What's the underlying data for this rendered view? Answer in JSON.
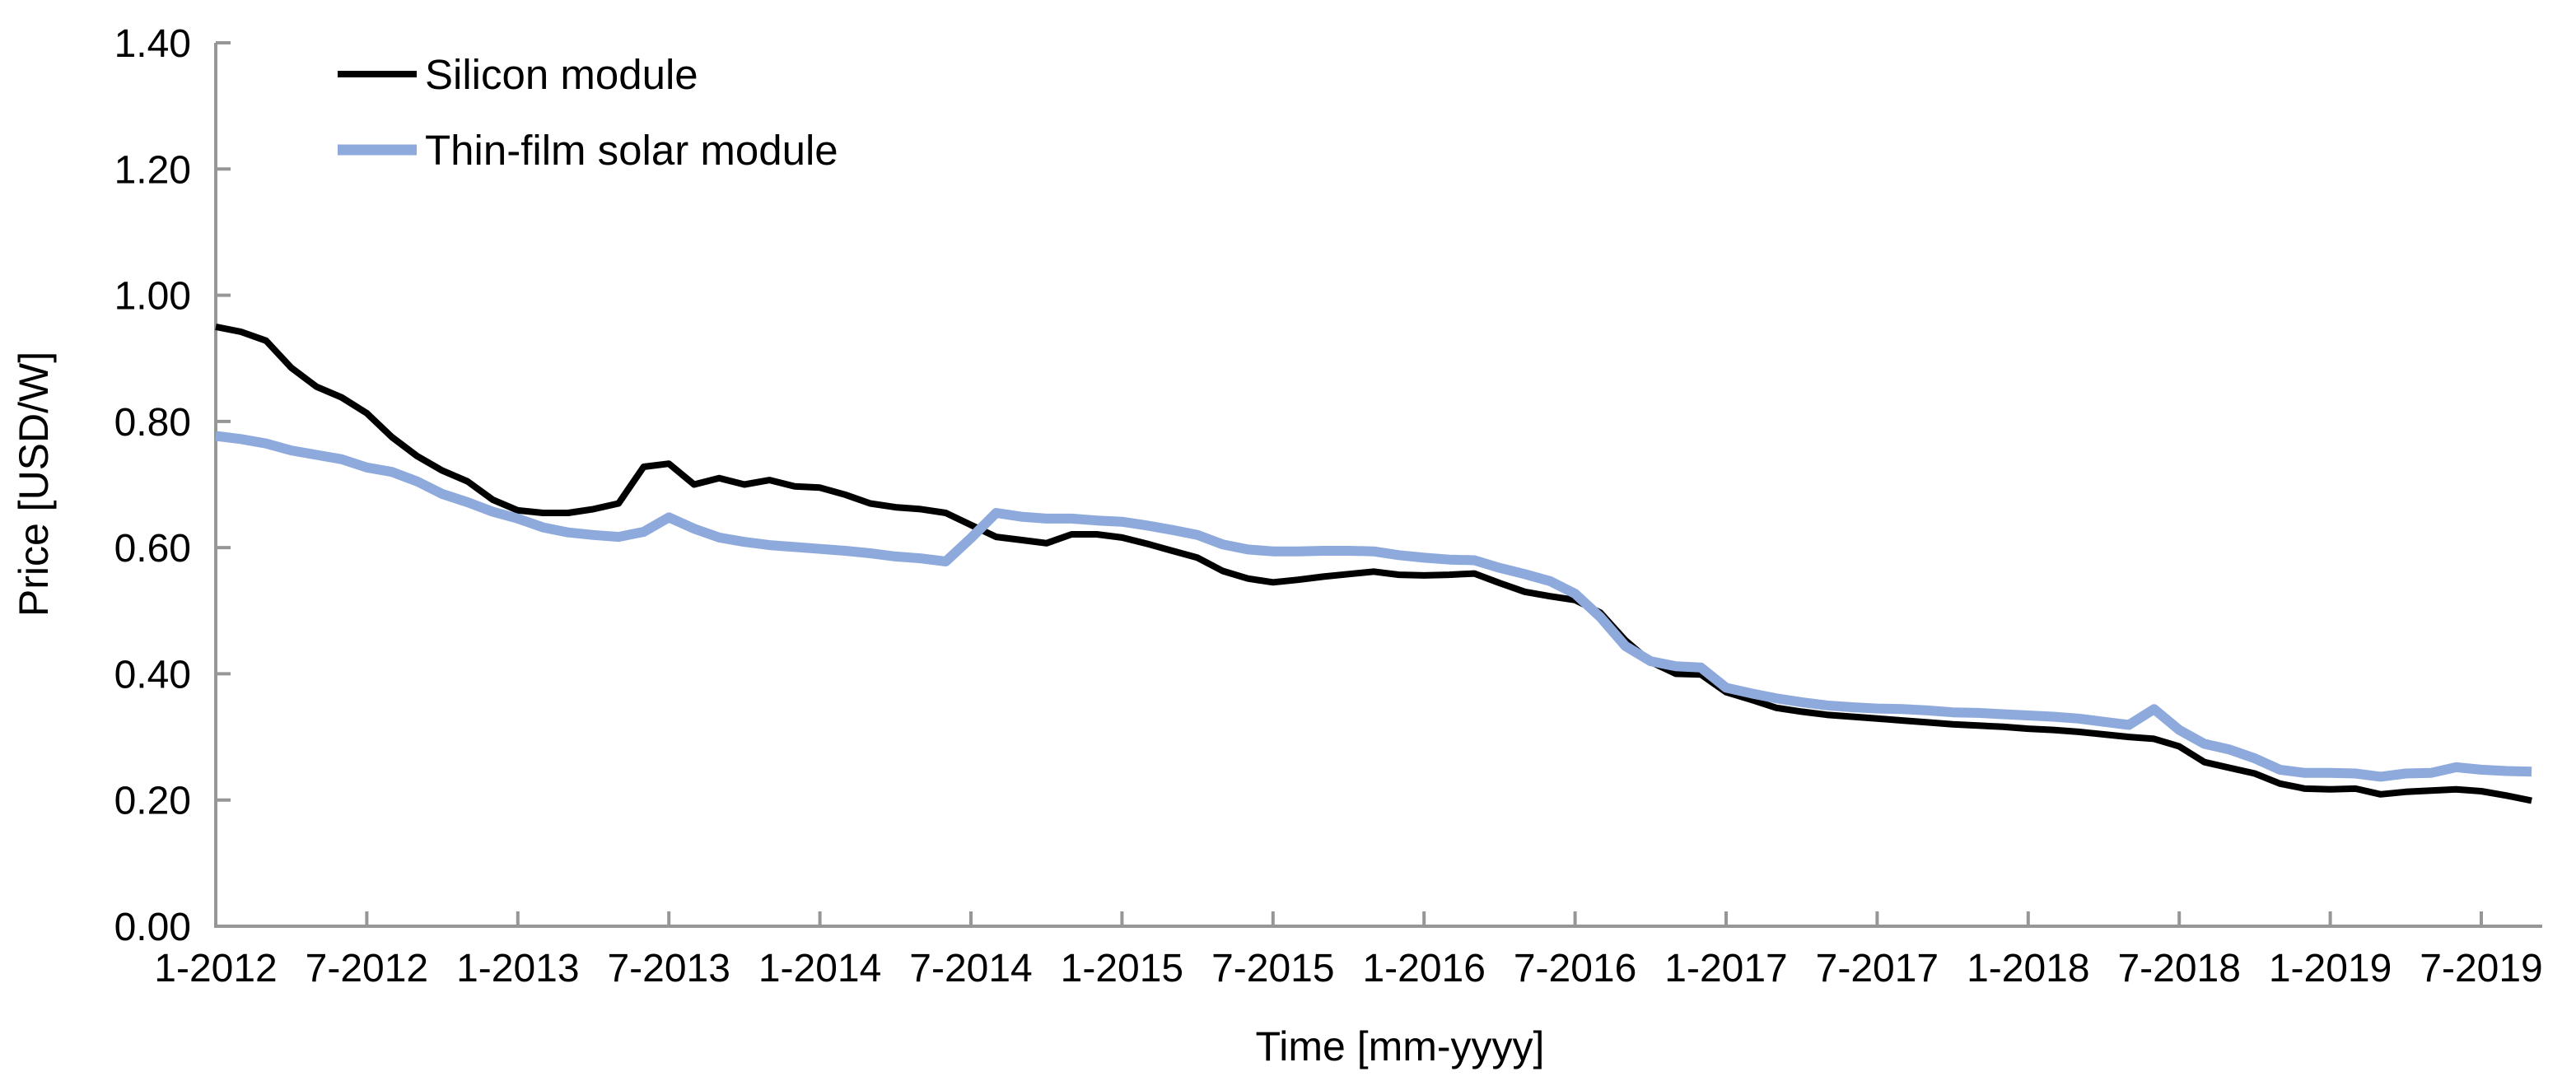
{
  "chart_data": {
    "type": "line",
    "title": "",
    "xlabel": "Time [mm-yyyy]",
    "ylabel": "Price [USD/W]",
    "ylim": [
      0.0,
      1.4
    ],
    "xlim_months": [
      "1-2012",
      "10-2019"
    ],
    "grid": false,
    "legend_position": "top-left-inside",
    "y_tick_labels": [
      "0.00",
      "0.20",
      "0.40",
      "0.60",
      "0.80",
      "1.00",
      "1.20",
      "1.40"
    ],
    "y_tick_values": [
      0.0,
      0.2,
      0.4,
      0.6,
      0.8,
      1.0,
      1.2,
      1.4
    ],
    "x_tick_labels": [
      "1-2012",
      "7-2012",
      "1-2013",
      "7-2013",
      "1-2014",
      "7-2014",
      "1-2015",
      "7-2015",
      "1-2016",
      "7-2016",
      "1-2017",
      "7-2017",
      "1-2018",
      "7-2018",
      "1-2019",
      "7-2019"
    ],
    "x_months": [
      "1-2012",
      "2-2012",
      "3-2012",
      "4-2012",
      "5-2012",
      "6-2012",
      "7-2012",
      "8-2012",
      "9-2012",
      "10-2012",
      "11-2012",
      "12-2012",
      "1-2013",
      "2-2013",
      "3-2013",
      "4-2013",
      "5-2013",
      "6-2013",
      "7-2013",
      "8-2013",
      "9-2013",
      "10-2013",
      "11-2013",
      "12-2013",
      "1-2014",
      "2-2014",
      "3-2014",
      "4-2014",
      "5-2014",
      "6-2014",
      "7-2014",
      "8-2014",
      "9-2014",
      "10-2014",
      "11-2014",
      "12-2014",
      "1-2015",
      "2-2015",
      "3-2015",
      "4-2015",
      "5-2015",
      "6-2015",
      "7-2015",
      "8-2015",
      "9-2015",
      "10-2015",
      "11-2015",
      "12-2015",
      "1-2016",
      "2-2016",
      "3-2016",
      "4-2016",
      "5-2016",
      "6-2016",
      "7-2016",
      "8-2016",
      "9-2016",
      "10-2016",
      "11-2016",
      "12-2016",
      "1-2017",
      "2-2017",
      "3-2017",
      "4-2017",
      "5-2017",
      "6-2017",
      "7-2017",
      "8-2017",
      "9-2017",
      "10-2017",
      "11-2017",
      "12-2017",
      "1-2018",
      "2-2018",
      "3-2018",
      "4-2018",
      "5-2018",
      "6-2018",
      "7-2018",
      "8-2018",
      "9-2018",
      "10-2018",
      "11-2018",
      "12-2018",
      "1-2019",
      "2-2019",
      "3-2019",
      "4-2019",
      "5-2019",
      "6-2019",
      "7-2019",
      "8-2019",
      "9-2019"
    ],
    "series": [
      {
        "name": "Silicon module",
        "color": "#000000",
        "stroke_width": 8,
        "values": [
          0.95,
          0.942,
          0.928,
          0.885,
          0.855,
          0.838,
          0.813,
          0.775,
          0.745,
          0.722,
          0.705,
          0.676,
          0.659,
          0.655,
          0.655,
          0.661,
          0.67,
          0.728,
          0.733,
          0.7,
          0.71,
          0.7,
          0.707,
          0.697,
          0.695,
          0.684,
          0.67,
          0.664,
          0.661,
          0.655,
          0.636,
          0.617,
          0.612,
          0.607,
          0.621,
          0.621,
          0.616,
          0.606,
          0.595,
          0.584,
          0.563,
          0.551,
          0.545,
          0.549,
          0.554,
          0.558,
          0.562,
          0.557,
          0.556,
          0.557,
          0.559,
          0.544,
          0.53,
          0.523,
          0.517,
          0.497,
          0.453,
          0.419,
          0.4,
          0.399,
          0.371,
          0.359,
          0.346,
          0.34,
          0.335,
          0.332,
          0.329,
          0.326,
          0.323,
          0.32,
          0.318,
          0.316,
          0.313,
          0.311,
          0.308,
          0.304,
          0.3,
          0.297,
          0.285,
          0.26,
          0.251,
          0.242,
          0.226,
          0.218,
          0.217,
          0.218,
          0.209,
          0.213,
          0.215,
          0.217,
          0.214,
          0.207,
          0.199
        ]
      },
      {
        "name": "Thin-film solar module",
        "color": "#8EA9DB",
        "stroke_width": 12,
        "values": [
          0.777,
          0.772,
          0.765,
          0.754,
          0.747,
          0.74,
          0.727,
          0.72,
          0.705,
          0.685,
          0.672,
          0.657,
          0.646,
          0.632,
          0.624,
          0.62,
          0.617,
          0.625,
          0.648,
          0.63,
          0.616,
          0.609,
          0.604,
          0.601,
          0.598,
          0.595,
          0.591,
          0.586,
          0.583,
          0.578,
          0.615,
          0.655,
          0.649,
          0.646,
          0.646,
          0.643,
          0.641,
          0.635,
          0.628,
          0.62,
          0.605,
          0.597,
          0.594,
          0.594,
          0.595,
          0.595,
          0.594,
          0.588,
          0.584,
          0.581,
          0.58,
          0.568,
          0.558,
          0.547,
          0.527,
          0.49,
          0.444,
          0.42,
          0.412,
          0.41,
          0.378,
          0.369,
          0.361,
          0.355,
          0.35,
          0.347,
          0.345,
          0.344,
          0.342,
          0.339,
          0.338,
          0.336,
          0.334,
          0.332,
          0.329,
          0.324,
          0.319,
          0.344,
          0.311,
          0.289,
          0.28,
          0.266,
          0.248,
          0.243,
          0.243,
          0.242,
          0.237,
          0.242,
          0.243,
          0.252,
          0.248,
          0.246,
          0.245
        ]
      }
    ]
  },
  "axes": {
    "x_title": "Time [mm-yyyy]",
    "y_title": "Price [USD/W]"
  },
  "legend": {
    "items": [
      {
        "label": "Silicon module",
        "color": "#000000"
      },
      {
        "label": "Thin-film solar module",
        "color": "#8EA9DB"
      }
    ]
  },
  "colors": {
    "silicon_line": "#000000",
    "thin_film_line": "#8EA9DB",
    "axis": "#969696",
    "text": "#000000",
    "background": "#FFFFFF"
  }
}
